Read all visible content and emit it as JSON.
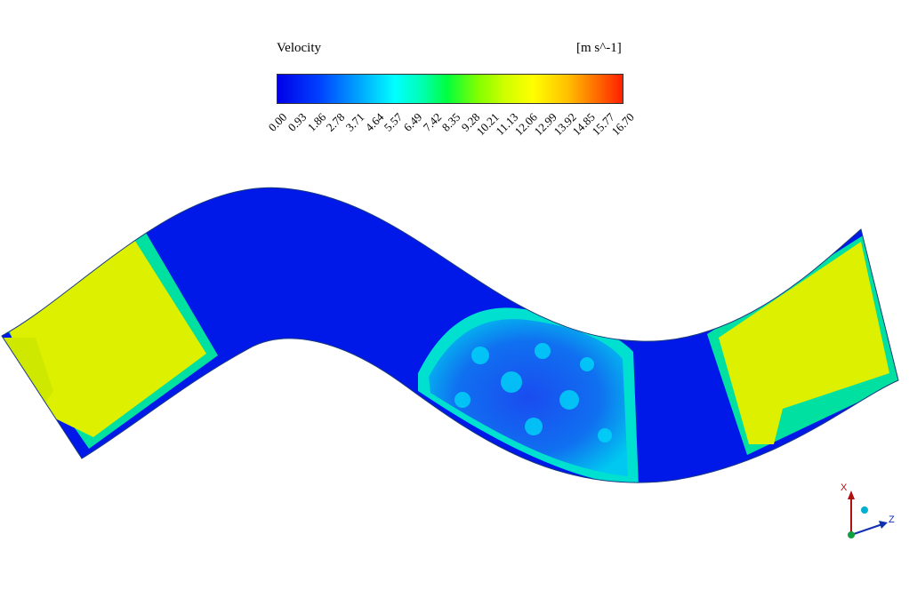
{
  "legend": {
    "title": "Velocity",
    "unit": "[m s^-1]",
    "ticks": [
      "0.00",
      "0.93",
      "1.86",
      "2.78",
      "3.71",
      "4.64",
      "5.57",
      "6.49",
      "7.42",
      "8.35",
      "9.28",
      "10.21",
      "11.13",
      "12.06",
      "12.99",
      "13.92",
      "14.85",
      "15.77",
      "16.70"
    ]
  },
  "triad": {
    "x_label": "X",
    "z_label": "Z"
  },
  "colors": {
    "low": "#0000e8",
    "mid": "#00ffff",
    "high_mid": "#ffff00",
    "high": "#ff2000"
  }
}
